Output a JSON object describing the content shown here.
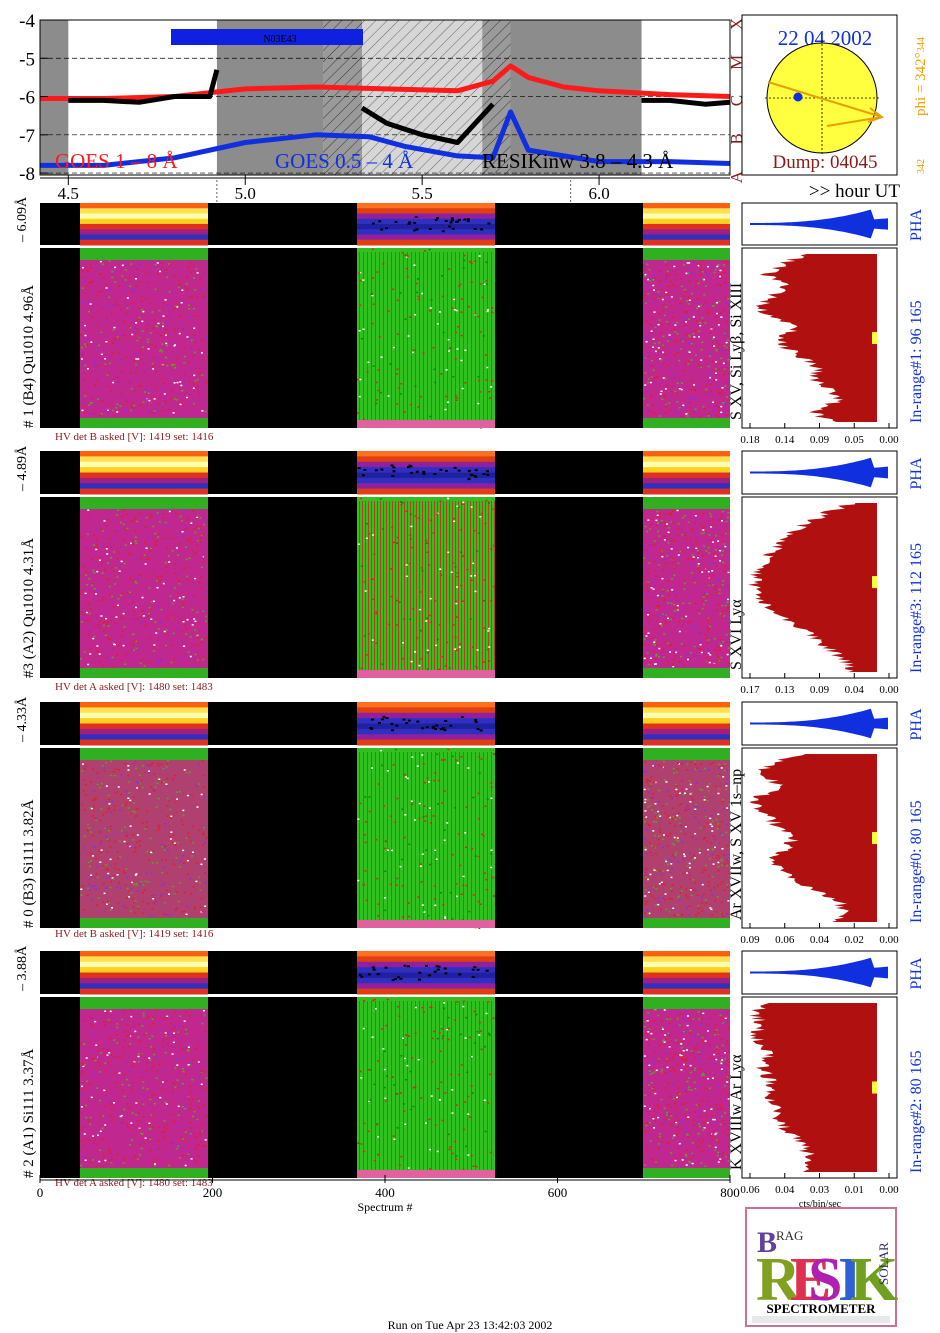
{
  "goes": {
    "y_ticks": [
      "-4",
      "-5",
      "-6",
      "-7",
      "-8"
    ],
    "y_values": [
      -4,
      -5,
      -6,
      -7,
      -8
    ],
    "class_letters": [
      "X",
      "M",
      "C",
      "B",
      "A"
    ],
    "active_region_label": "N03E43",
    "legend_long": "GOES 1 – 8 Å",
    "legend_short": "GOES 0.5 – 4 Å",
    "legend_resik": "RESIKinw 3.8 – 4.3 Å",
    "colors": {
      "long": "#ff1a1a",
      "short": "#1030e0",
      "resik": "#000000",
      "night": "#8c8c8c",
      "saa": "#b4b4b4",
      "region_bar": "#1020e0"
    }
  },
  "sun": {
    "date": "22 04 2002",
    "dump": "Dump: 04045",
    "phi_label": "phi = 342°",
    "phi_top": "344",
    "phi_bottom": "342",
    "disk_color": "#ffff40",
    "arrow_color": "#e8a000"
  },
  "time_axis": {
    "ticks": [
      "4.5",
      "5.0",
      "5.5",
      "6.0"
    ],
    "unit_label": ">> hour UT"
  },
  "spectrum_axis": {
    "ticks": [
      "0",
      "200",
      "400",
      "600",
      "800"
    ],
    "title": "Spectrum #"
  },
  "channels": [
    {
      "id": 1,
      "pha_side": "– 6.09Å",
      "crystal_label": "# 1 (B4) Qu1010 4.96Å",
      "lines": "S XV, Si Lyβ, Si XIII",
      "in_range": "In-range#1:   96 165",
      "hv": "HV det B asked [V]:  1419 set:  1416",
      "x_ticks": [
        "0.18",
        "0.14",
        "0.09",
        "0.05",
        "0.00"
      ]
    },
    {
      "id": 3,
      "pha_side": "– 4.89Å",
      "crystal_label": "#3 (A2) Qu1010  4.31Å",
      "lines": "S XVI Lyα",
      "in_range": "In-range#3:  112 165",
      "hv": "HV det A asked [V]:  1480 set:  1483",
      "x_ticks": [
        "0.17",
        "0.13",
        "0.09",
        "0.04",
        "0.00"
      ]
    },
    {
      "id": 0,
      "pha_side": "– 4.33Å",
      "crystal_label": "# 0 (B3) Si111  3.82Å",
      "lines": "Ar XVIIw,  S XV 1s–np",
      "in_range": "In-range#0:   80 165",
      "hv": "HV det B asked [V]:  1419 set:  1416",
      "x_ticks": [
        "0.09",
        "0.06",
        "0.04",
        "0.02",
        "0.00"
      ]
    },
    {
      "id": 2,
      "pha_side": "– 3.88Å",
      "crystal_label": "# 2 (A1) Si111  3.37Å",
      "lines": "K XVIIIw  Ar Lyα",
      "in_range": "In-range#2:   80 165",
      "hv": "HV det A asked [V]:  1480 set:  1483",
      "x_ticks": [
        "0.06",
        "0.04",
        "0.03",
        "0.01",
        "0.00"
      ],
      "x_title": "cts/bin/sec"
    }
  ],
  "pha_label": "PHA",
  "logo": {
    "word": "RESIK",
    "subtitle": "SPECTROMETER",
    "left_text": "BRAGG",
    "right_text": "SOLAR"
  },
  "footer": "Run on Tue Apr 23 13:42:03 2002",
  "chart_data": {
    "type": "line",
    "title": "",
    "xlabel": "",
    "ylabel": "",
    "x_unit": "hour UT",
    "xlim": [
      4.42,
      6.37
    ],
    "ylim": [
      -8.05,
      -4.0
    ],
    "series": [
      {
        "name": "GOES 1 – 8 Å",
        "x": [
          4.42,
          4.6,
          4.8,
          5.0,
          5.2,
          5.4,
          5.6,
          5.7,
          5.75,
          5.8,
          5.9,
          6.0,
          6.2,
          6.37
        ],
        "values": [
          -6.05,
          -6.05,
          -6.0,
          -5.8,
          -5.75,
          -5.8,
          -5.85,
          -5.6,
          -5.2,
          -5.5,
          -5.75,
          -5.85,
          -5.95,
          -6.0
        ]
      },
      {
        "name": "GOES 0.5 – 4 Å",
        "x": [
          4.42,
          4.6,
          4.8,
          5.0,
          5.2,
          5.35,
          5.45,
          5.6,
          5.7,
          5.75,
          5.8,
          6.0,
          6.2,
          6.37
        ],
        "values": [
          -7.8,
          -7.8,
          -7.6,
          -7.2,
          -7.0,
          -7.05,
          -7.3,
          -7.55,
          -7.6,
          -6.4,
          -7.4,
          -7.7,
          -7.7,
          -7.75
        ]
      },
      {
        "name": "RESIKinw 3.8 – 4.3 Å",
        "x": [
          4.5,
          4.6,
          4.7,
          4.8,
          4.9,
          4.92,
          5.33,
          5.4,
          5.5,
          5.6,
          5.7,
          6.12,
          6.2,
          6.3,
          6.37
        ],
        "values": [
          -6.1,
          -6.1,
          -6.15,
          -6.0,
          -6.0,
          -5.3,
          -6.3,
          -6.7,
          -7.0,
          -7.2,
          -6.2,
          -6.1,
          -6.1,
          -6.2,
          -6.15
        ]
      }
    ],
    "night_intervals_hours": [
      [
        4.42,
        4.5
      ],
      [
        4.92,
        5.29
      ],
      [
        5.67,
        6.12
      ],
      [
        6.37,
        6.37
      ]
    ],
    "shaded_interval_hours": [
      5.22,
      5.67
    ],
    "grid": true
  }
}
